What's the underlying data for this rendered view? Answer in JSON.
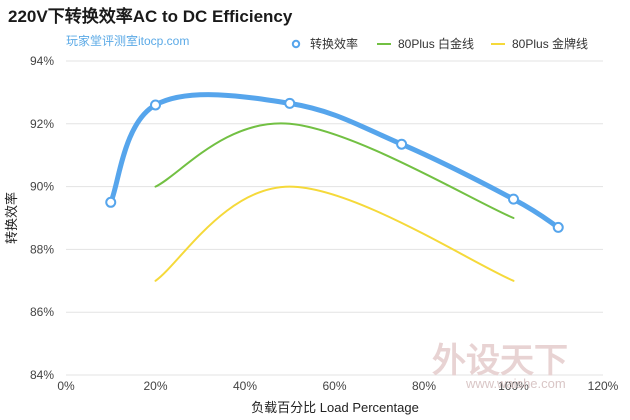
{
  "chart_data": {
    "type": "line",
    "title": "220V下转换效率AC to DC Efficiency",
    "subtitle": "玩家堂评测室itocp.com",
    "xlabel": "负载百分比 Load Percentage",
    "ylabel": "转换效率",
    "xlim": [
      0,
      120
    ],
    "ylim": [
      84,
      94
    ],
    "xticks": [
      "0%",
      "20%",
      "40%",
      "60%",
      "80%",
      "100%",
      "120%"
    ],
    "yticks": [
      "84%",
      "86%",
      "88%",
      "90%",
      "92%",
      "94%"
    ],
    "grid": "horizontal",
    "legend_position": "top-right",
    "series": [
      {
        "name": "转换效率",
        "color": "#56a5ec",
        "markers": true,
        "points": [
          [
            10,
            89.5
          ],
          [
            20,
            92.6
          ],
          [
            50,
            92.65
          ],
          [
            75,
            91.35
          ],
          [
            100,
            89.6
          ],
          [
            110,
            88.7
          ]
        ]
      },
      {
        "name": "80Plus 白金线",
        "color": "#72c043",
        "markers": false,
        "points": [
          [
            20,
            90
          ],
          [
            50,
            92
          ],
          [
            100,
            89
          ]
        ]
      },
      {
        "name": "80Plus 金牌线",
        "color": "#f5d93a",
        "markers": false,
        "points": [
          [
            20,
            87
          ],
          [
            50,
            90
          ],
          [
            100,
            87
          ]
        ]
      }
    ]
  },
  "watermark": {
    "text": "外设天下",
    "url": "www.waishe.com"
  }
}
